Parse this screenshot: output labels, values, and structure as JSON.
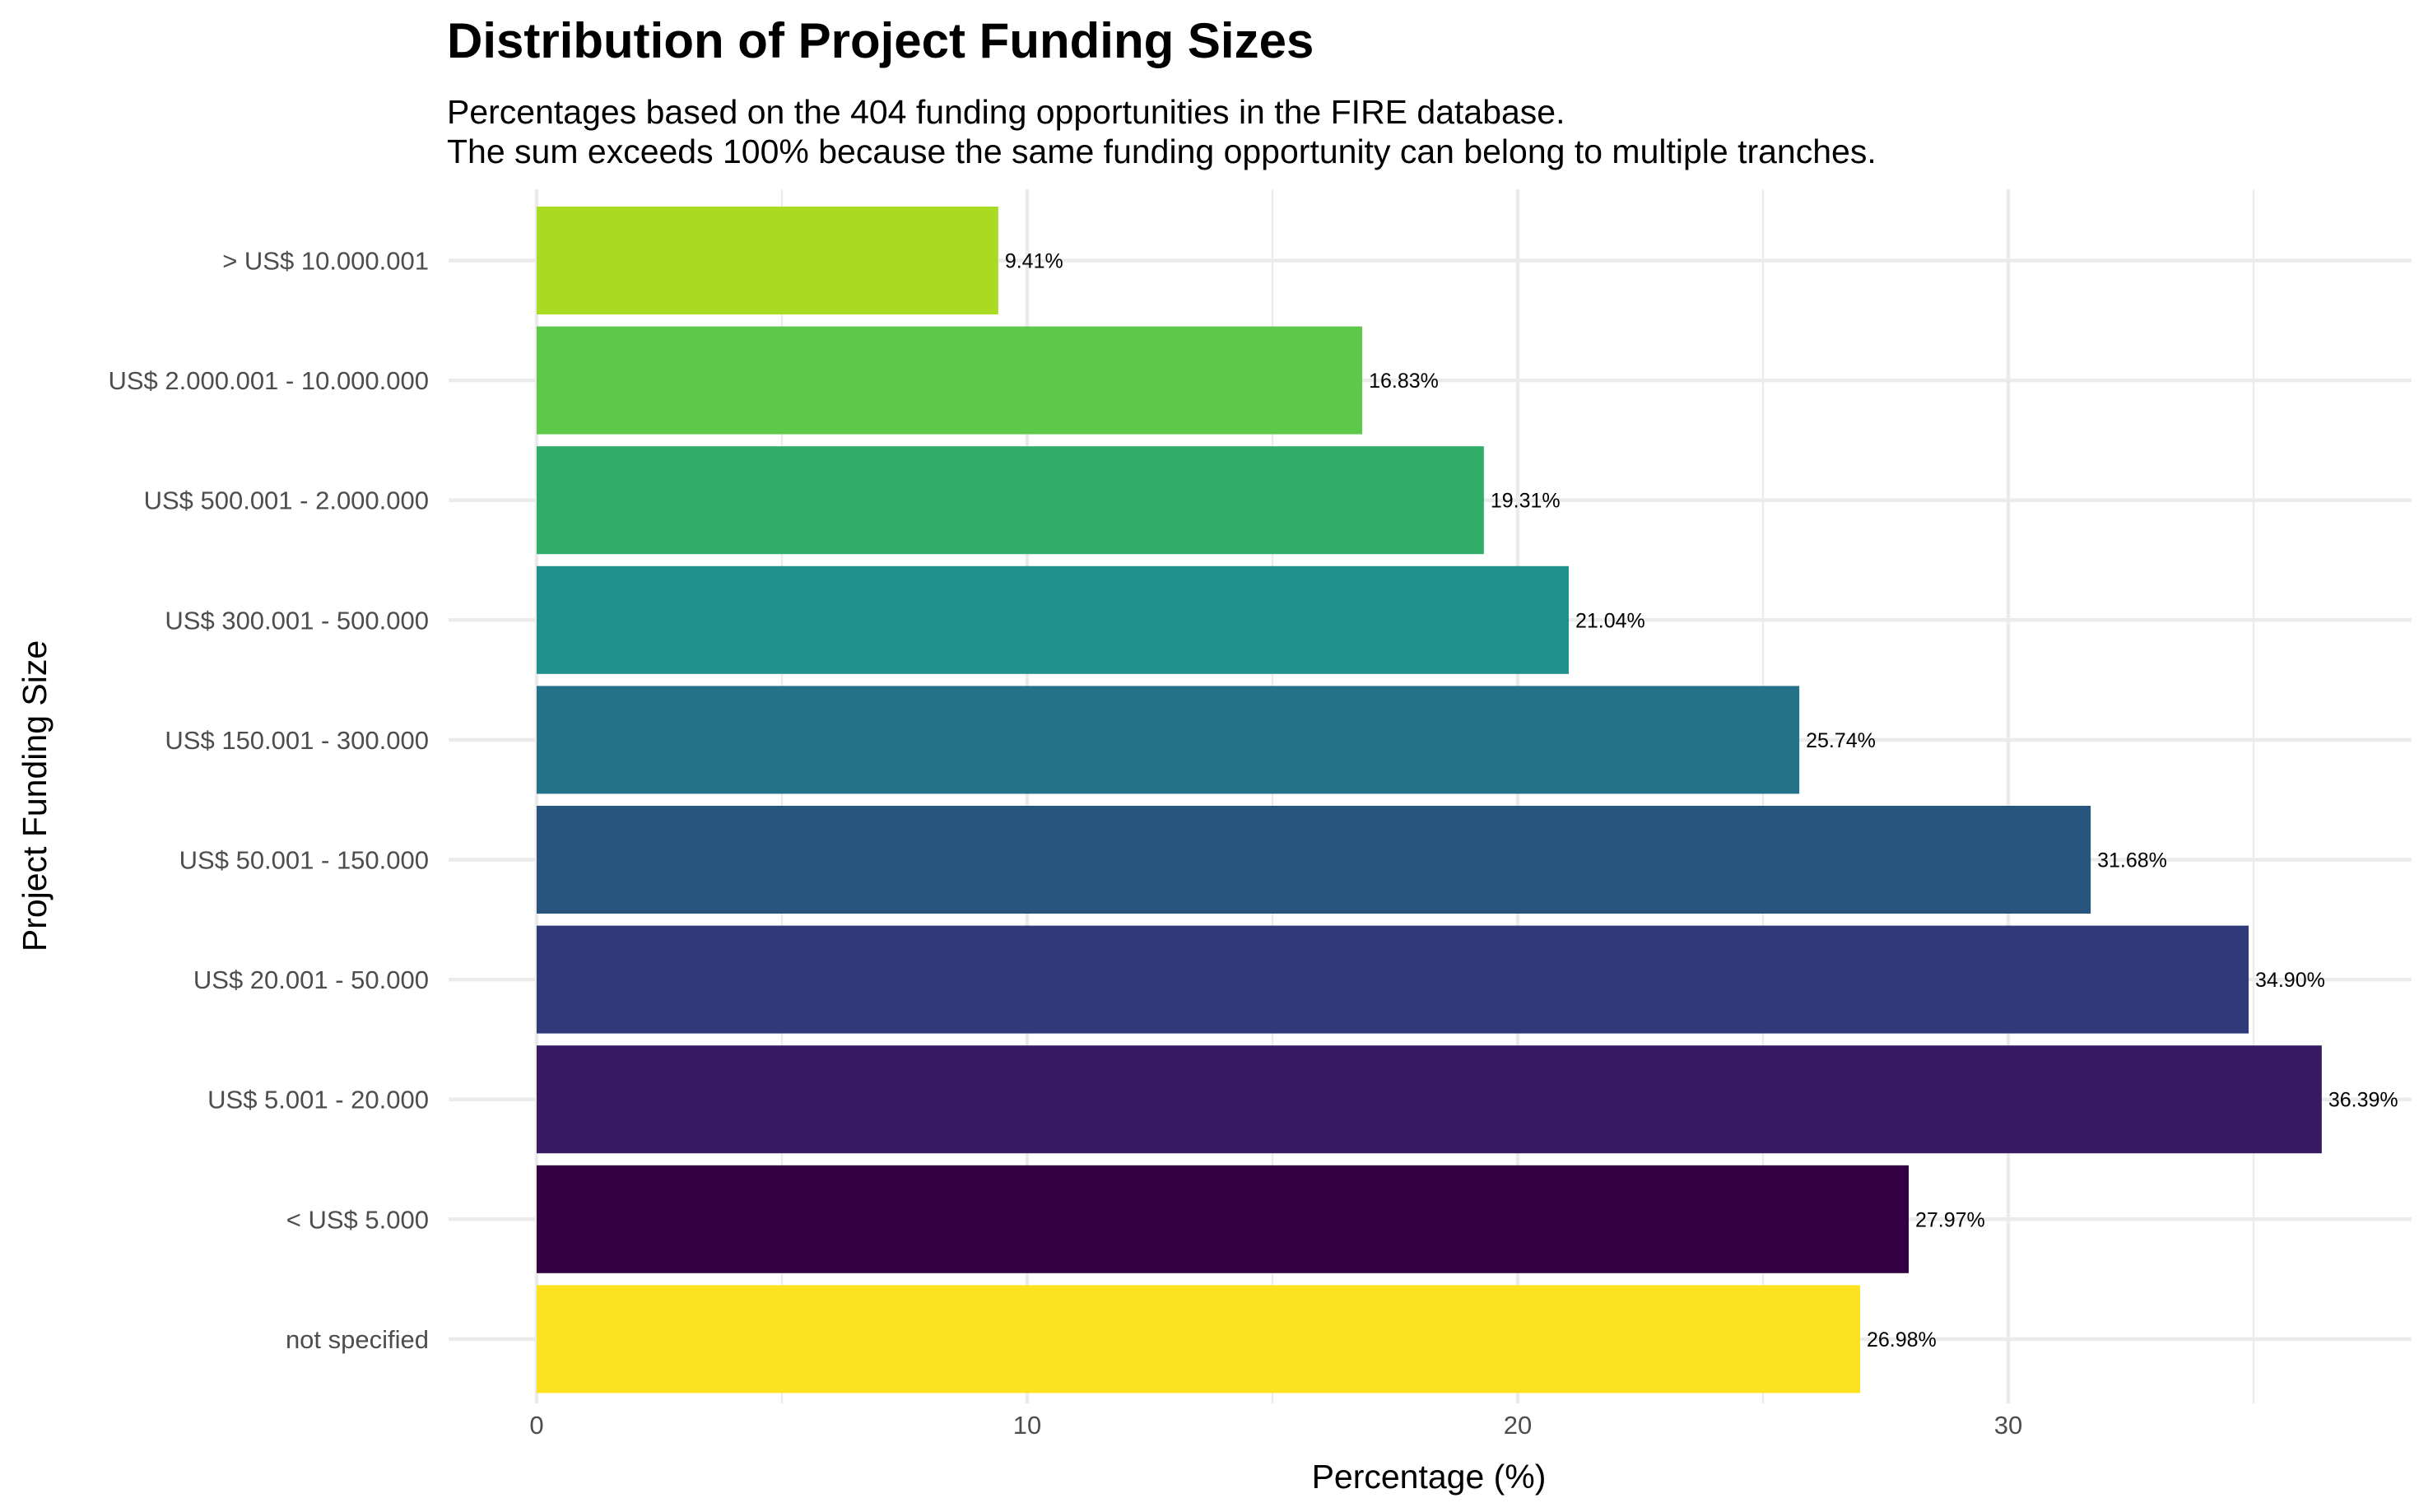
{
  "chart_data": {
    "type": "bar",
    "orientation": "horizontal",
    "title": "Distribution of Project Funding Sizes",
    "subtitle": [
      "Percentages based on the 404 funding opportunities in the FIRE database.",
      "The sum exceeds 100% because the same funding opportunity can belong to multiple tranches."
    ],
    "xlabel": "Percentage (%)",
    "ylabel": "Project Funding Size",
    "xlim": [
      0,
      38.2
    ],
    "xticks": [
      0,
      10,
      20,
      30
    ],
    "xtick_labels": [
      "0",
      "10",
      "20",
      "30"
    ],
    "x_minor_ticks": [
      5,
      15,
      25,
      35
    ],
    "grid": true,
    "legend": "none",
    "categories": [
      "> US$ 10.000.001",
      "US$ 2.000.001 - 10.000.000",
      "US$ 500.001 - 2.000.000",
      "US$ 300.001 - 500.000",
      "US$ 150.001 - 300.000",
      "US$ 50.001 - 150.000",
      "US$ 20.001 - 50.000",
      "US$ 5.001 - 20.000",
      "< US$ 5.000",
      "not specified"
    ],
    "values": [
      9.41,
      16.83,
      19.31,
      21.04,
      25.74,
      31.68,
      34.9,
      36.39,
      27.97,
      26.98
    ],
    "data_labels": [
      "9.41%",
      "16.83%",
      "19.31%",
      "21.04%",
      "25.74%",
      "31.68%",
      "34.90%",
      "36.39%",
      "27.97%",
      "26.98%"
    ],
    "colors": [
      "#a8db21",
      "#5ec84a",
      "#31ad6a",
      "#20908c",
      "#24718a",
      "#28557d",
      "#303a79",
      "#381a63",
      "#330043",
      "#fde31f"
    ]
  }
}
